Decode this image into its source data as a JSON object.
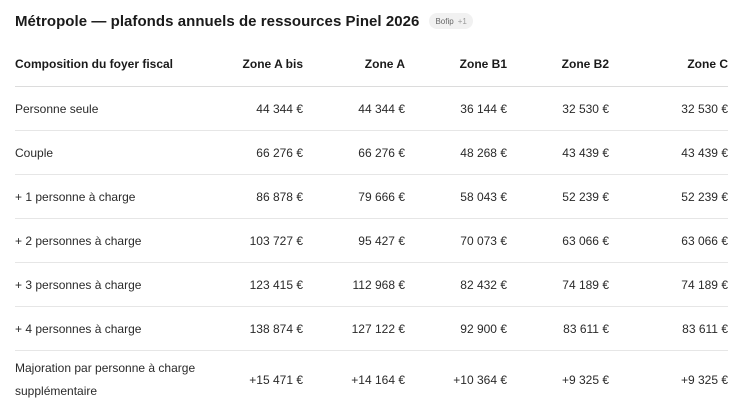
{
  "header": {
    "title": "Métropole — plafonds annuels de ressources Pinel 2026",
    "badge_source": "Bofip",
    "badge_extra": "+1"
  },
  "table": {
    "columns": [
      "Composition du foyer fiscal",
      "Zone A bis",
      "Zone A",
      "Zone B1",
      "Zone B2",
      "Zone C"
    ],
    "rows": [
      {
        "label": "Personne seule",
        "values": [
          "44 344 €",
          "44 344 €",
          "36 144 €",
          "32 530 €",
          "32 530 €"
        ]
      },
      {
        "label": "Couple",
        "values": [
          "66 276 €",
          "66 276 €",
          "48 268 €",
          "43 439 €",
          "43 439 €"
        ]
      },
      {
        "label": "+ 1 personne à charge",
        "values": [
          "86 878 €",
          "79 666 €",
          "58 043 €",
          "52 239 €",
          "52 239 €"
        ]
      },
      {
        "label": "+ 2 personnes à charge",
        "values": [
          "103 727 €",
          "95 427 €",
          "70 073 €",
          "63 066 €",
          "63 066 €"
        ]
      },
      {
        "label": "+ 3 personnes à charge",
        "values": [
          "123 415 €",
          "112 968 €",
          "82 432 €",
          "74 189 €",
          "74 189 €"
        ]
      },
      {
        "label": "+ 4 personnes à charge",
        "values": [
          "138 874 €",
          "127 122 €",
          "92 900 €",
          "83 611 €",
          "83 611 €"
        ]
      },
      {
        "label": "Majoration par personne à charge supplémentaire",
        "values": [
          "+15 471 €",
          "+14 164 €",
          "+10 364 €",
          "+9 325 €",
          "+9 325 €"
        ]
      }
    ]
  }
}
